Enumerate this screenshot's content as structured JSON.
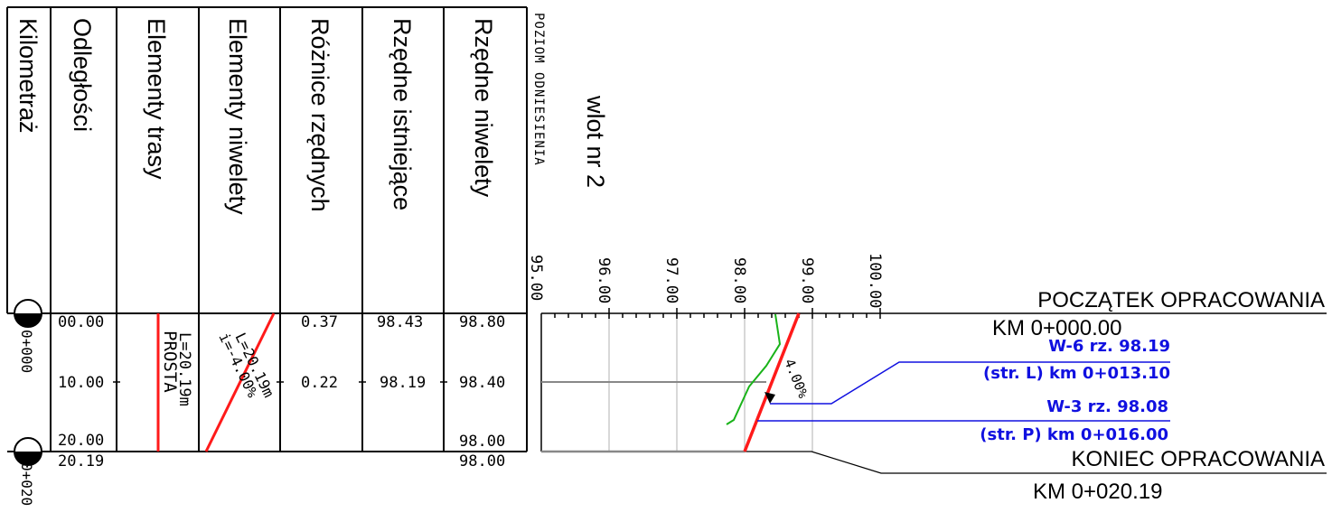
{
  "columns": [
    "Kilometraż",
    "Odległości",
    "Elementy trasy",
    "Elementy niwelety",
    "Różnice rzędnych",
    "Rzędne istniejące",
    "Rzędne niwelety"
  ],
  "datum": {
    "label": "POZIOM ODNIESIENIA",
    "value": "95.00"
  },
  "profile_title": "wlot nr 2",
  "scale_ticks": [
    "96.00",
    "97.00",
    "98.00",
    "99.00",
    "100.00"
  ],
  "kilometrage": [
    "0+000",
    "0+020"
  ],
  "distances": [
    "00.00",
    "10.00",
    "20.00",
    "20.19"
  ],
  "route_element": {
    "type": "PROSTA",
    "length": "L=20.19m"
  },
  "grade_element": {
    "grade": "i=-4.00%",
    "length": "L=20.19m"
  },
  "differences": [
    "0.37",
    "0.22"
  ],
  "existing": [
    "98.43",
    "98.19"
  ],
  "design": [
    "98.80",
    "98.40",
    "98.00",
    "98.00"
  ],
  "grade_label": "4.00%",
  "annotations": {
    "start": {
      "title": "POCZĄTEK OPRACOWANIA",
      "km": "KM 0+000.00"
    },
    "w6": {
      "line1": "W-6 rz. 98.19",
      "line2": "(str. L) km 0+013.10"
    },
    "w3": {
      "line1": "W-3 rz. 98.08",
      "line2": "(str. P) km 0+016.00"
    },
    "end": {
      "title": "KONIEC OPRACOWANIA",
      "km": "KM 0+020.19"
    }
  },
  "colors": {
    "design_line": "#ff1a1a",
    "terrain_line": "#19b319",
    "annotation": "#1010e0",
    "grid": "#cccccc"
  }
}
